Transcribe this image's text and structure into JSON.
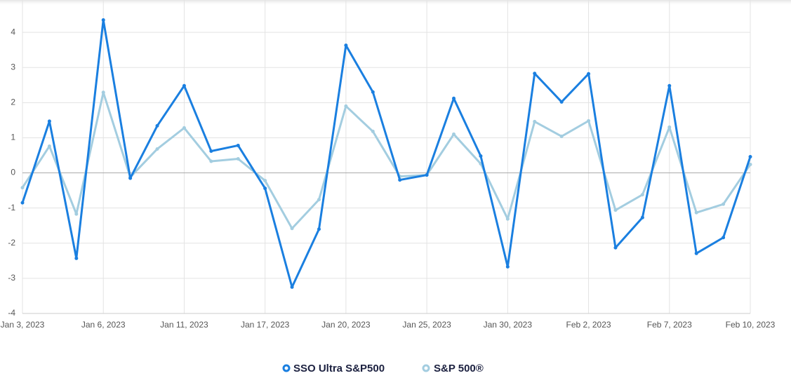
{
  "chart_data": {
    "type": "line",
    "categories": [
      "Jan 3, 2023",
      null,
      null,
      "Jan 6, 2023",
      null,
      null,
      "Jan 11, 2023",
      null,
      null,
      "Jan 17, 2023",
      null,
      null,
      "Jan 20, 2023",
      null,
      null,
      "Jan 25, 2023",
      null,
      null,
      "Jan 30, 2023",
      null,
      null,
      "Feb 2, 2023",
      null,
      null,
      "Feb 7, 2023",
      null,
      null,
      "Feb 10, 2023"
    ],
    "series": [
      {
        "name": "SSO Ultra S&P500",
        "color": "#1a7fe0",
        "values": [
          -0.85,
          1.47,
          -2.43,
          4.35,
          -0.15,
          1.34,
          2.48,
          0.62,
          0.78,
          -0.44,
          -3.25,
          -1.6,
          3.63,
          2.3,
          -0.2,
          -0.06,
          2.12,
          0.48,
          -2.67,
          2.83,
          2.02,
          2.82,
          -2.13,
          -1.27,
          2.48,
          -2.29,
          -1.84,
          0.46
        ]
      },
      {
        "name": "S&P 500®",
        "color": "#a3cde0",
        "values": [
          -0.42,
          0.76,
          -1.17,
          2.29,
          -0.12,
          0.68,
          1.28,
          0.33,
          0.4,
          -0.22,
          -1.58,
          -0.76,
          1.9,
          1.18,
          -0.1,
          -0.06,
          1.1,
          0.26,
          -1.31,
          1.46,
          1.04,
          1.48,
          -1.06,
          -0.62,
          1.3,
          -1.13,
          -0.89,
          0.24
        ]
      }
    ],
    "ylim": [
      -4,
      4.9
    ],
    "yticks": [
      -4,
      -3,
      -2,
      -1,
      0,
      1,
      2,
      3,
      4
    ],
    "grid": true,
    "legend": "bottom"
  }
}
